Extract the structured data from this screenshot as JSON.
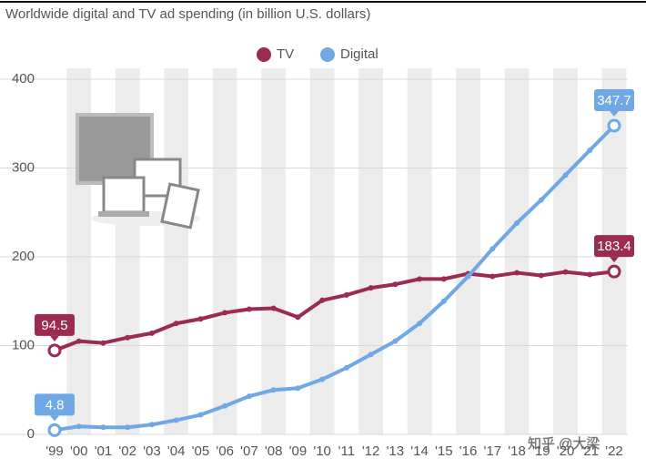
{
  "chart_data": {
    "type": "line",
    "title": "Worldwide digital and TV ad spending (in billion U.S. dollars)",
    "categories": [
      "'99",
      "'00",
      "'01",
      "'02",
      "'03",
      "'04",
      "'05",
      "'06",
      "'07",
      "'08",
      "'09",
      "'10",
      "'11",
      "'12",
      "'13",
      "'14",
      "'15",
      "'16",
      "'17",
      "'18",
      "'19",
      "'20",
      "'21",
      "'22"
    ],
    "series": [
      {
        "name": "TV",
        "color": "#9b2b52",
        "values": [
          94.5,
          105,
          103,
          109,
          114,
          125,
          130,
          137,
          141,
          142,
          132,
          151,
          157,
          165,
          169,
          175,
          175,
          181,
          178,
          182,
          179,
          183,
          180,
          183.4
        ]
      },
      {
        "name": "Digital",
        "color": "#6fa8e4",
        "values": [
          4.8,
          9,
          8,
          8,
          11,
          16,
          22,
          32,
          43,
          50,
          52,
          62,
          75,
          90,
          105,
          125,
          150,
          178,
          209,
          238,
          264,
          292,
          320,
          347.7
        ]
      }
    ],
    "ylim": [
      0,
      400
    ],
    "yticks": [
      0,
      100,
      200,
      300,
      400
    ],
    "grid": true,
    "watermark": "知乎 @大梁"
  }
}
